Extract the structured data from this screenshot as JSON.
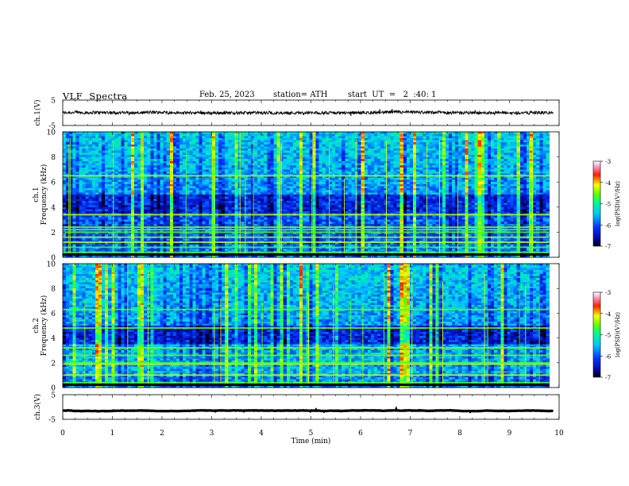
{
  "header": {
    "title": "VLF  Spectra",
    "date": "Feb. 25, 2023",
    "station": "station= ATH",
    "start": "start  UT  =   2  :40: 1"
  },
  "chart_data": [
    {
      "type": "line",
      "id": "ch1",
      "ylabel": "ch.1(V)",
      "ylim": [
        -5,
        5
      ],
      "yticks": [
        "5",
        "-5"
      ],
      "xlim": [
        0,
        10
      ],
      "baseline": 0,
      "noise_amplitude": 0.6,
      "color": "#000000"
    },
    {
      "type": "heatmap",
      "id": "ch1-spectrogram",
      "ylabel": "ch.1\nFrequency  (kHz)",
      "ylim": [
        0,
        10
      ],
      "yticks": [
        "0",
        "2",
        "4",
        "6",
        "8",
        "10"
      ],
      "xlim": [
        0,
        9.8
      ],
      "colorbar": {
        "label": "log(PSD)(V²/Hz)",
        "range": [
          -7,
          -3
        ],
        "ticks": [
          "-3",
          "-4",
          "-5",
          "-6",
          "-7"
        ]
      },
      "persistent_bands_khz": [
        0.4,
        0.8,
        1.2,
        1.6,
        2.0,
        2.2,
        2.4,
        3.4,
        6.5
      ]
    },
    {
      "type": "heatmap",
      "id": "ch2-spectrogram",
      "ylabel": "ch.2\nFrequency  (kHz)",
      "ylim": [
        0,
        10
      ],
      "yticks": [
        "0",
        "2",
        "4",
        "6",
        "8",
        "10"
      ],
      "xlim": [
        0,
        9.8
      ],
      "colorbar": {
        "label": "log(PSD)(V²/Hz)",
        "range": [
          -7,
          -3
        ],
        "ticks": [
          "-3",
          "-4",
          "-5",
          "-6",
          "-7"
        ]
      },
      "persistent_bands_khz": [
        0.4,
        1.0,
        1.9,
        2.0,
        2.6,
        3.2,
        4.8,
        6.3
      ]
    },
    {
      "type": "line",
      "id": "ch3",
      "ylabel": "ch.3(V)",
      "ylim": [
        -5,
        5
      ],
      "yticks": [
        "5",
        "-5"
      ],
      "xlim": [
        0,
        10
      ],
      "baseline": -1.5,
      "noise_amplitude": 0.15,
      "color": "#000000"
    }
  ],
  "xaxis": {
    "label": "Time  (min)",
    "range": [
      0,
      10
    ],
    "ticks": [
      "0",
      "1",
      "2",
      "3",
      "4",
      "5",
      "6",
      "7",
      "8",
      "9",
      "10"
    ]
  }
}
